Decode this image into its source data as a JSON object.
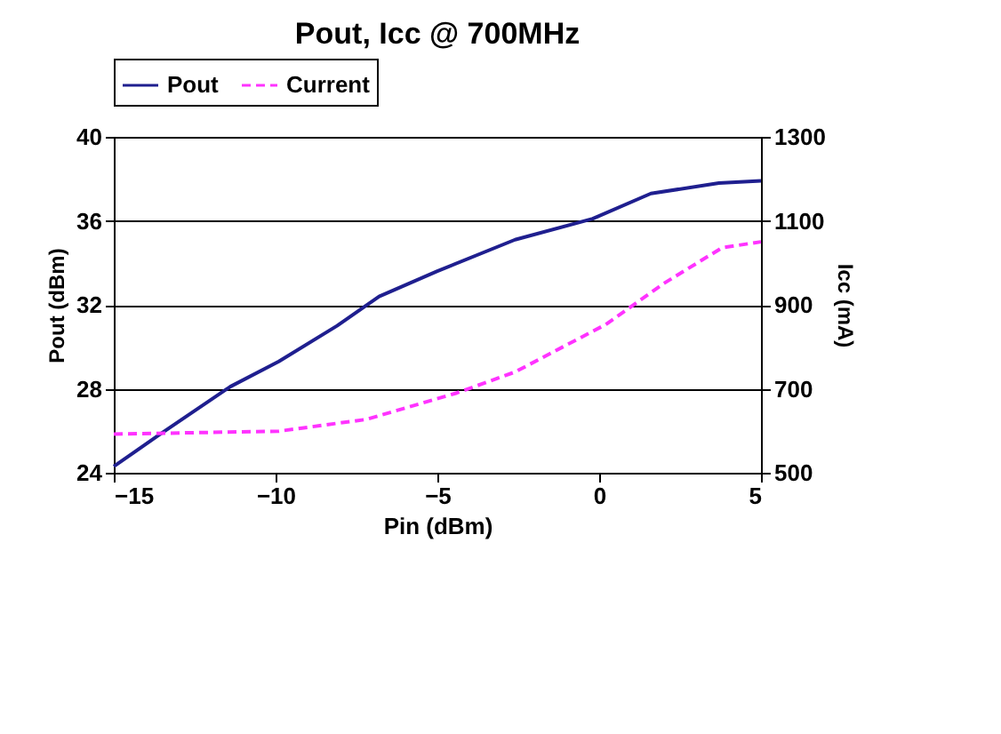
{
  "chart_data": {
    "type": "line",
    "title": "Pout, Icc @ 700MHz",
    "xlabel": "Pin (dBm)",
    "ylabel": "Pout (dBm)",
    "y2label": "Icc (mA)",
    "xlim": [
      -15,
      5
    ],
    "xticks": [
      -15,
      -10,
      -5,
      0,
      5
    ],
    "ylim": [
      24,
      40
    ],
    "yticks": [
      24,
      28,
      32,
      36,
      40
    ],
    "y2lim": [
      500,
      1300
    ],
    "y2ticks": [
      500,
      700,
      900,
      1100,
      1300
    ],
    "grid": "y",
    "legend": "top",
    "series": [
      {
        "name": "Pout",
        "color": "#1f1f8f",
        "line_style": "solid",
        "x": [
          -15,
          -13.6,
          -11.4,
          -9.9,
          -8.1,
          -6.8,
          -5,
          -2.6,
          -0.2,
          1.6,
          3.7,
          5
        ],
        "values": [
          24.3,
          25.8,
          28.1,
          29.3,
          31.0,
          32.4,
          33.6,
          35.1,
          36.1,
          37.3,
          37.8,
          37.9
        ]
      },
      {
        "name": "Current",
        "color": "#ff33ff",
        "line_style": "dashed",
        "axis": "y2",
        "x": [
          -15,
          -9.9,
          -7.2,
          -4.4,
          -2.6,
          0.2,
          2,
          3.8,
          5
        ],
        "values": [
          592,
          599,
          627,
          690,
          740,
          853,
          951,
          1036,
          1050
        ]
      }
    ]
  }
}
